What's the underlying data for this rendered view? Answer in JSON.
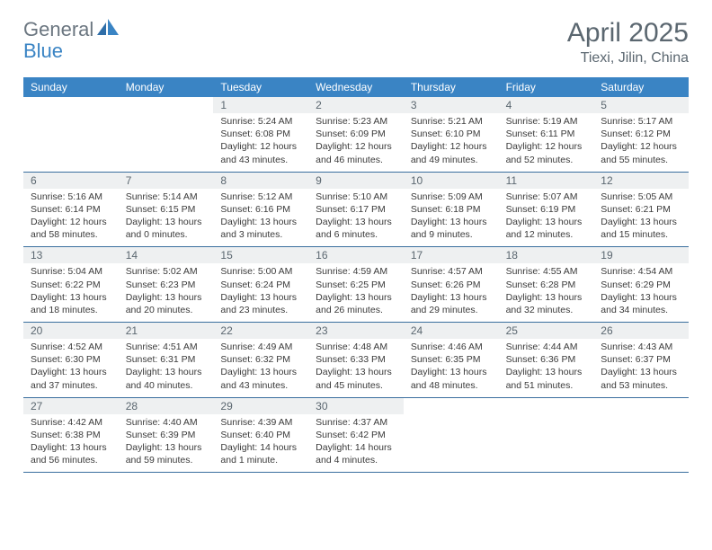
{
  "colors": {
    "header_bg": "#3a84c4",
    "header_text": "#ffffff",
    "daynum_bg": "#eef0f1",
    "text_muted": "#5b6770",
    "cell_text": "#3a3a3a",
    "week_border": "#3a6f9e",
    "background": "#ffffff",
    "logo_gray": "#6b7680",
    "logo_blue": "#3a84c4"
  },
  "typography": {
    "month_title_fontsize": 30,
    "location_fontsize": 16,
    "dayname_fontsize": 12,
    "daynum_fontsize": 12,
    "cell_fontsize": 10.5
  },
  "logo": {
    "part1": "General",
    "part2": "Blue"
  },
  "title": "April 2025",
  "location": "Tiexi, Jilin, China",
  "daynames": [
    "Sunday",
    "Monday",
    "Tuesday",
    "Wednesday",
    "Thursday",
    "Friday",
    "Saturday"
  ],
  "weeks": [
    [
      {
        "num": "",
        "sunrise": "",
        "sunset": "",
        "daylight": ""
      },
      {
        "num": "",
        "sunrise": "",
        "sunset": "",
        "daylight": ""
      },
      {
        "num": "1",
        "sunrise": "Sunrise: 5:24 AM",
        "sunset": "Sunset: 6:08 PM",
        "daylight": "Daylight: 12 hours and 43 minutes."
      },
      {
        "num": "2",
        "sunrise": "Sunrise: 5:23 AM",
        "sunset": "Sunset: 6:09 PM",
        "daylight": "Daylight: 12 hours and 46 minutes."
      },
      {
        "num": "3",
        "sunrise": "Sunrise: 5:21 AM",
        "sunset": "Sunset: 6:10 PM",
        "daylight": "Daylight: 12 hours and 49 minutes."
      },
      {
        "num": "4",
        "sunrise": "Sunrise: 5:19 AM",
        "sunset": "Sunset: 6:11 PM",
        "daylight": "Daylight: 12 hours and 52 minutes."
      },
      {
        "num": "5",
        "sunrise": "Sunrise: 5:17 AM",
        "sunset": "Sunset: 6:12 PM",
        "daylight": "Daylight: 12 hours and 55 minutes."
      }
    ],
    [
      {
        "num": "6",
        "sunrise": "Sunrise: 5:16 AM",
        "sunset": "Sunset: 6:14 PM",
        "daylight": "Daylight: 12 hours and 58 minutes."
      },
      {
        "num": "7",
        "sunrise": "Sunrise: 5:14 AM",
        "sunset": "Sunset: 6:15 PM",
        "daylight": "Daylight: 13 hours and 0 minutes."
      },
      {
        "num": "8",
        "sunrise": "Sunrise: 5:12 AM",
        "sunset": "Sunset: 6:16 PM",
        "daylight": "Daylight: 13 hours and 3 minutes."
      },
      {
        "num": "9",
        "sunrise": "Sunrise: 5:10 AM",
        "sunset": "Sunset: 6:17 PM",
        "daylight": "Daylight: 13 hours and 6 minutes."
      },
      {
        "num": "10",
        "sunrise": "Sunrise: 5:09 AM",
        "sunset": "Sunset: 6:18 PM",
        "daylight": "Daylight: 13 hours and 9 minutes."
      },
      {
        "num": "11",
        "sunrise": "Sunrise: 5:07 AM",
        "sunset": "Sunset: 6:19 PM",
        "daylight": "Daylight: 13 hours and 12 minutes."
      },
      {
        "num": "12",
        "sunrise": "Sunrise: 5:05 AM",
        "sunset": "Sunset: 6:21 PM",
        "daylight": "Daylight: 13 hours and 15 minutes."
      }
    ],
    [
      {
        "num": "13",
        "sunrise": "Sunrise: 5:04 AM",
        "sunset": "Sunset: 6:22 PM",
        "daylight": "Daylight: 13 hours and 18 minutes."
      },
      {
        "num": "14",
        "sunrise": "Sunrise: 5:02 AM",
        "sunset": "Sunset: 6:23 PM",
        "daylight": "Daylight: 13 hours and 20 minutes."
      },
      {
        "num": "15",
        "sunrise": "Sunrise: 5:00 AM",
        "sunset": "Sunset: 6:24 PM",
        "daylight": "Daylight: 13 hours and 23 minutes."
      },
      {
        "num": "16",
        "sunrise": "Sunrise: 4:59 AM",
        "sunset": "Sunset: 6:25 PM",
        "daylight": "Daylight: 13 hours and 26 minutes."
      },
      {
        "num": "17",
        "sunrise": "Sunrise: 4:57 AM",
        "sunset": "Sunset: 6:26 PM",
        "daylight": "Daylight: 13 hours and 29 minutes."
      },
      {
        "num": "18",
        "sunrise": "Sunrise: 4:55 AM",
        "sunset": "Sunset: 6:28 PM",
        "daylight": "Daylight: 13 hours and 32 minutes."
      },
      {
        "num": "19",
        "sunrise": "Sunrise: 4:54 AM",
        "sunset": "Sunset: 6:29 PM",
        "daylight": "Daylight: 13 hours and 34 minutes."
      }
    ],
    [
      {
        "num": "20",
        "sunrise": "Sunrise: 4:52 AM",
        "sunset": "Sunset: 6:30 PM",
        "daylight": "Daylight: 13 hours and 37 minutes."
      },
      {
        "num": "21",
        "sunrise": "Sunrise: 4:51 AM",
        "sunset": "Sunset: 6:31 PM",
        "daylight": "Daylight: 13 hours and 40 minutes."
      },
      {
        "num": "22",
        "sunrise": "Sunrise: 4:49 AM",
        "sunset": "Sunset: 6:32 PM",
        "daylight": "Daylight: 13 hours and 43 minutes."
      },
      {
        "num": "23",
        "sunrise": "Sunrise: 4:48 AM",
        "sunset": "Sunset: 6:33 PM",
        "daylight": "Daylight: 13 hours and 45 minutes."
      },
      {
        "num": "24",
        "sunrise": "Sunrise: 4:46 AM",
        "sunset": "Sunset: 6:35 PM",
        "daylight": "Daylight: 13 hours and 48 minutes."
      },
      {
        "num": "25",
        "sunrise": "Sunrise: 4:44 AM",
        "sunset": "Sunset: 6:36 PM",
        "daylight": "Daylight: 13 hours and 51 minutes."
      },
      {
        "num": "26",
        "sunrise": "Sunrise: 4:43 AM",
        "sunset": "Sunset: 6:37 PM",
        "daylight": "Daylight: 13 hours and 53 minutes."
      }
    ],
    [
      {
        "num": "27",
        "sunrise": "Sunrise: 4:42 AM",
        "sunset": "Sunset: 6:38 PM",
        "daylight": "Daylight: 13 hours and 56 minutes."
      },
      {
        "num": "28",
        "sunrise": "Sunrise: 4:40 AM",
        "sunset": "Sunset: 6:39 PM",
        "daylight": "Daylight: 13 hours and 59 minutes."
      },
      {
        "num": "29",
        "sunrise": "Sunrise: 4:39 AM",
        "sunset": "Sunset: 6:40 PM",
        "daylight": "Daylight: 14 hours and 1 minute."
      },
      {
        "num": "30",
        "sunrise": "Sunrise: 4:37 AM",
        "sunset": "Sunset: 6:42 PM",
        "daylight": "Daylight: 14 hours and 4 minutes."
      },
      {
        "num": "",
        "sunrise": "",
        "sunset": "",
        "daylight": ""
      },
      {
        "num": "",
        "sunrise": "",
        "sunset": "",
        "daylight": ""
      },
      {
        "num": "",
        "sunrise": "",
        "sunset": "",
        "daylight": ""
      }
    ]
  ]
}
